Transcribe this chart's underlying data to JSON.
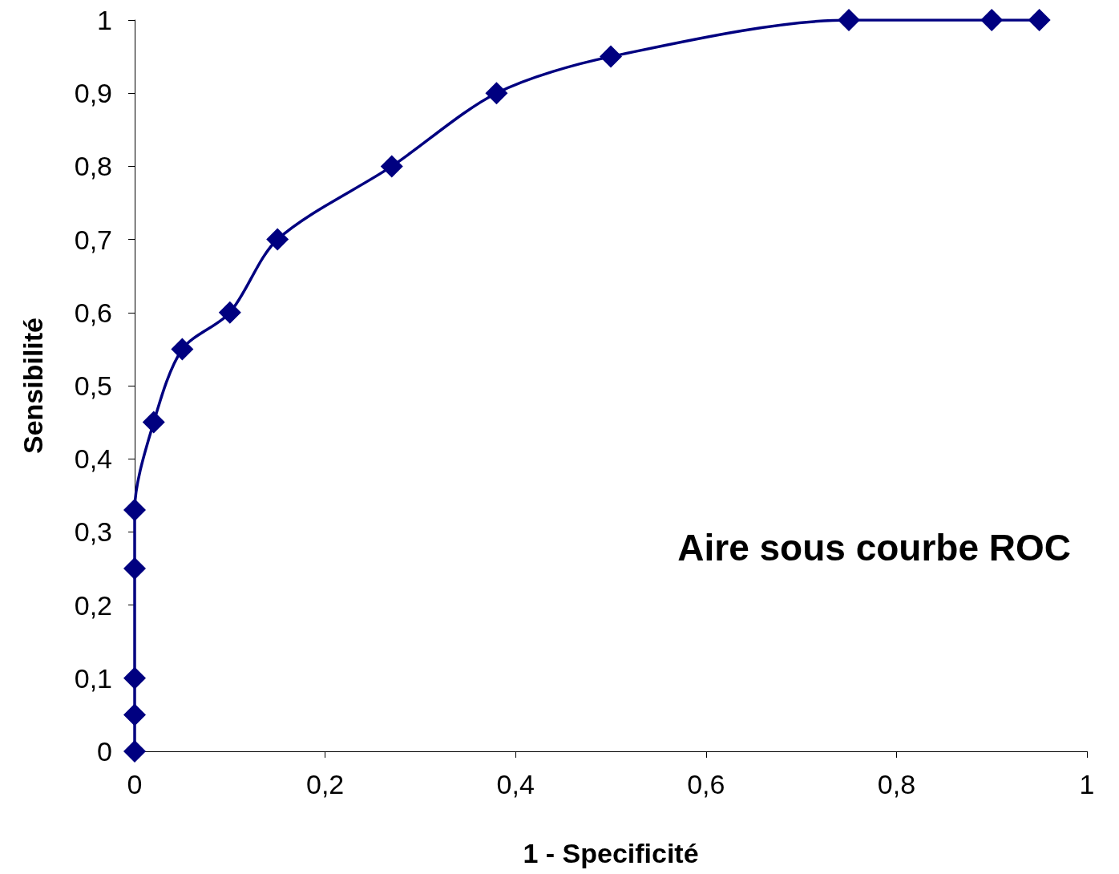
{
  "chart_data": {
    "type": "line",
    "xlabel": "1 - Specificité",
    "ylabel": "Sensibilité",
    "x": [
      0,
      0,
      0,
      0,
      0,
      0.02,
      0.05,
      0.1,
      0.15,
      0.27,
      0.38,
      0.5,
      0.75,
      0.9,
      0.95
    ],
    "series": [
      {
        "color": "#000080",
        "values": [
          0,
          0.05,
          0.1,
          0.25,
          0.33,
          0.45,
          0.55,
          0.6,
          0.7,
          0.8,
          0.9,
          0.95,
          1,
          1,
          1
        ]
      }
    ],
    "xlim": [
      0,
      1
    ],
    "ylim": [
      0,
      1
    ],
    "xticks": [
      0,
      {
        "value": 0.2,
        "label": "0,2"
      },
      {
        "value": 0.4,
        "label": "0,4"
      },
      {
        "value": 0.6,
        "label": "0,6"
      },
      {
        "value": 0.8,
        "label": "0,8"
      },
      1
    ],
    "yticks": [
      0,
      {
        "value": 0.1,
        "label": "0,1"
      },
      {
        "value": 0.2,
        "label": "0,2"
      },
      {
        "value": 0.3,
        "label": "0,3"
      },
      {
        "value": 0.4,
        "label": "0,4"
      },
      {
        "value": 0.5,
        "label": "0,5"
      },
      {
        "value": 0.6,
        "label": "0,6"
      },
      {
        "value": 0.7,
        "label": "0,7"
      },
      {
        "value": 0.8,
        "label": "0,8"
      },
      {
        "value": 0.9,
        "label": "0,9"
      },
      1
    ],
    "annotations": [
      "Aire sous courbe ROC"
    ],
    "marker": "diamond",
    "line_style": "solid"
  }
}
